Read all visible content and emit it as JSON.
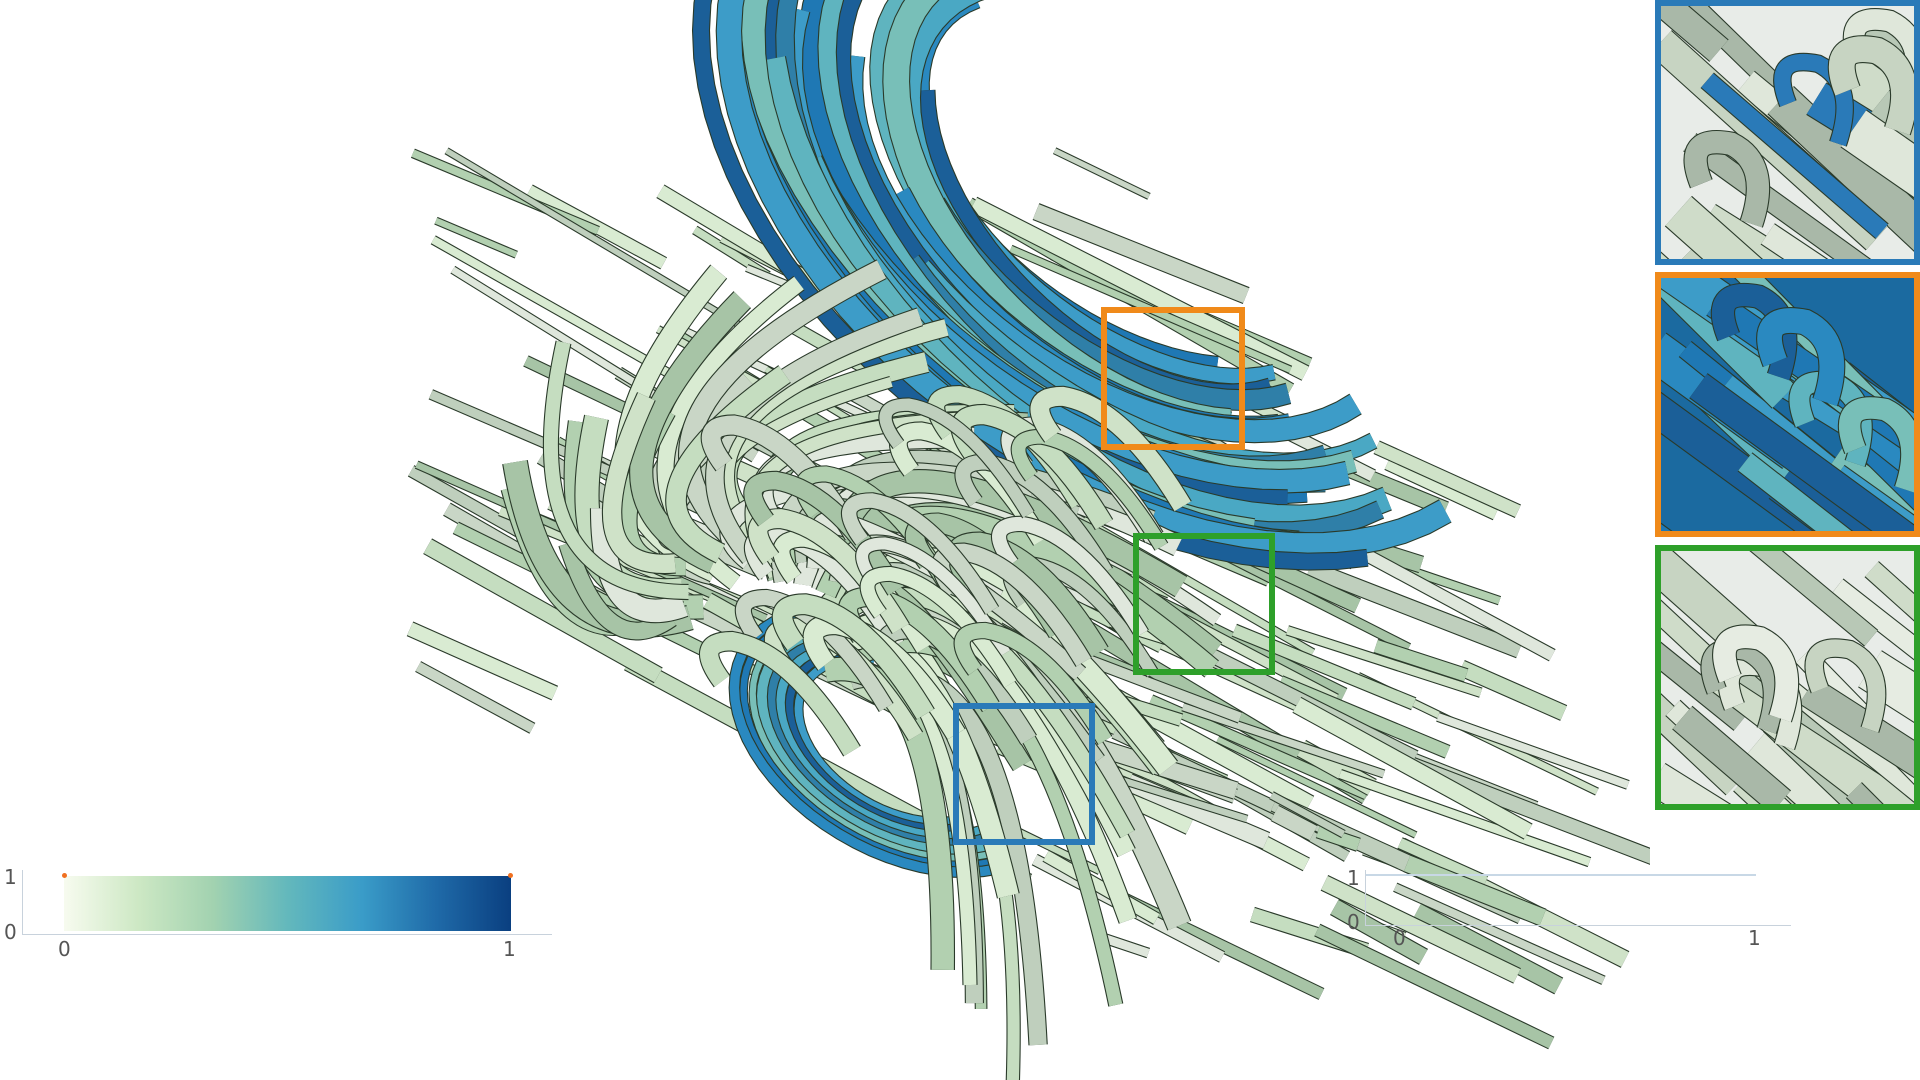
{
  "colors": {
    "light_green": "#e6f2dc",
    "mid_green": "#a9cca8",
    "teal": "#4fa9b6",
    "blue": "#2a7fb8",
    "dark_blue": "#0a4a8a",
    "orange_box": "#f08a1a",
    "green_box": "#2ea02a",
    "blue_box": "#2a7ab8",
    "outline": "#2a3a2a"
  },
  "colorbar": {
    "y_max_label": "1",
    "y_min_label": "0",
    "x_min_label": "0",
    "x_max_label": "1",
    "gradient": [
      "#f7fbef",
      "#cde8c4",
      "#a2d2b0",
      "#63b8bc",
      "#3a9cc8",
      "#1f6aa8",
      "#0a3f80"
    ]
  },
  "opacity_editor": {
    "y_max_label": "1",
    "y_min_label": "0",
    "x_min_label": "0",
    "x_max_label": "1"
  },
  "insets": [
    {
      "name": "inset-blue",
      "color": "#2a7ab8"
    },
    {
      "name": "inset-orange",
      "color": "#f08a1a"
    },
    {
      "name": "inset-green",
      "color": "#2ea02a"
    }
  ],
  "highlight_boxes": [
    {
      "name": "highlight-box-orange",
      "color": "#f08a1a"
    },
    {
      "name": "highlight-box-green",
      "color": "#2ea02a"
    },
    {
      "name": "highlight-box-blue",
      "color": "#2a7ab8"
    }
  ]
}
